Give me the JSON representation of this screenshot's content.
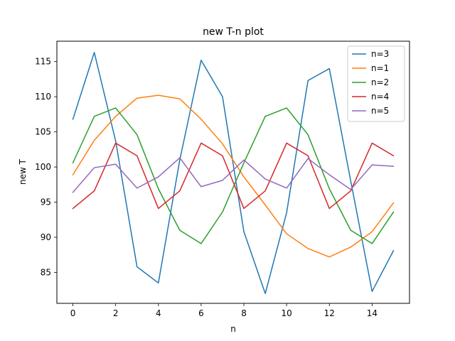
{
  "chart_data": {
    "type": "line",
    "title": "new T-n plot",
    "xlabel": "n",
    "ylabel": "new T",
    "x": [
      0,
      1,
      2,
      3,
      4,
      5,
      6,
      7,
      8,
      9,
      10,
      11,
      12,
      13,
      14,
      15
    ],
    "xlim": [
      -0.75,
      15.75
    ],
    "ylim": [
      80.6,
      117.9
    ],
    "xticks": [
      0,
      2,
      4,
      6,
      8,
      10,
      12,
      14
    ],
    "yticks": [
      85,
      90,
      95,
      100,
      105,
      110,
      115
    ],
    "grid": false,
    "legend_position": "top-right",
    "series": [
      {
        "name": "n=3",
        "color": "#1f77b4",
        "values": [
          106.8,
          116.3,
          103.7,
          85.8,
          83.5,
          101.0,
          115.2,
          110.0,
          90.8,
          82.0,
          93.5,
          112.3,
          114.0,
          98.0,
          82.3,
          88.1
        ]
      },
      {
        "name": "n=1",
        "color": "#ff7f0e",
        "values": [
          98.9,
          103.8,
          107.2,
          109.8,
          110.2,
          109.7,
          106.8,
          103.3,
          98.6,
          94.6,
          90.5,
          88.4,
          87.2,
          88.6,
          90.8,
          94.9
        ]
      },
      {
        "name": "n=2",
        "color": "#2ca02c",
        "values": [
          100.6,
          107.2,
          108.4,
          104.6,
          96.9,
          91.0,
          89.1,
          93.6,
          100.6,
          107.2,
          108.4,
          104.6,
          96.9,
          91.0,
          89.1,
          93.6
        ]
      },
      {
        "name": "n=4",
        "color": "#d62728",
        "values": [
          94.1,
          96.6,
          103.4,
          101.6,
          94.1,
          96.6,
          103.4,
          101.6,
          94.1,
          96.6,
          103.4,
          101.6,
          94.1,
          96.6,
          103.4,
          101.6
        ]
      },
      {
        "name": "n=5",
        "color": "#9467bd",
        "values": [
          96.4,
          99.9,
          100.4,
          97.0,
          98.6,
          101.3,
          97.2,
          98.1,
          101.0,
          98.3,
          97.0,
          101.2,
          98.9,
          96.8,
          100.3,
          100.1
        ]
      }
    ]
  }
}
